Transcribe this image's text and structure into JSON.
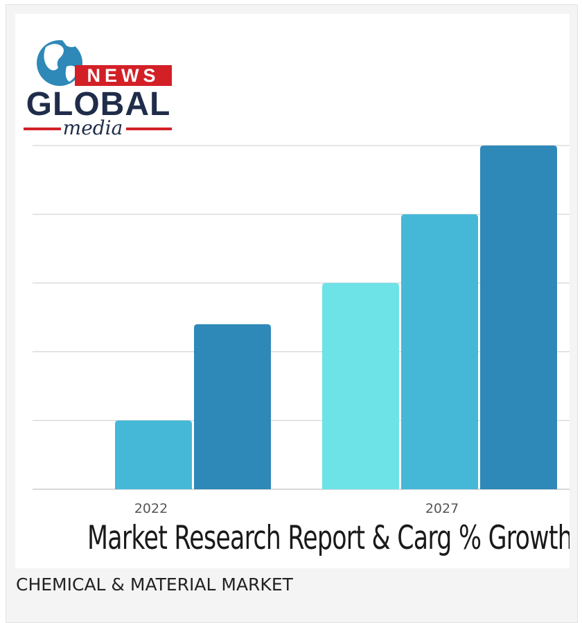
{
  "logo": {
    "top_word": "NEWS",
    "main_word": "GLOBAL",
    "script_word": "media"
  },
  "caption": "CHEMICAL & MATERIAL MARKET",
  "colors": {
    "light": "#6de3e8",
    "mid": "#45b8d8",
    "dark": "#2e88b8",
    "grid": "#cccccc",
    "brand_red": "#d32027",
    "brand_navy": "#1f2d4a"
  },
  "chart_data": {
    "type": "bar",
    "categories": [
      "2022",
      "2027"
    ],
    "series": [
      {
        "color": "#6de3e8",
        "values": [
          null,
          3
        ]
      },
      {
        "color": "#45b8d8",
        "values": [
          1,
          4
        ]
      },
      {
        "color": "#2e88b8",
        "values": [
          2.4,
          5
        ]
      }
    ],
    "title": "Market Research Report & Carg % Growth Analysis",
    "xlabel": "",
    "ylabel": "",
    "ylim": [
      0,
      5
    ],
    "grid": true,
    "legend": "none"
  }
}
